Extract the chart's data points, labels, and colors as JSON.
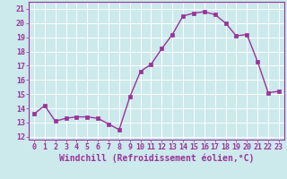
{
  "x": [
    0,
    1,
    2,
    3,
    4,
    5,
    6,
    7,
    8,
    9,
    10,
    11,
    12,
    13,
    14,
    15,
    16,
    17,
    18,
    19,
    20,
    21,
    22,
    23
  ],
  "y": [
    13.6,
    14.2,
    13.1,
    13.3,
    13.4,
    13.4,
    13.3,
    12.9,
    12.5,
    14.8,
    16.6,
    17.1,
    18.2,
    19.2,
    20.5,
    20.7,
    20.8,
    20.6,
    20.0,
    19.1,
    19.2,
    17.3,
    15.1,
    15.2
  ],
  "line_color": "#993399",
  "marker": "s",
  "markersize": 2.5,
  "linewidth": 1.0,
  "xlabel": "Windchill (Refroidissement éolien,°C)",
  "xlabel_fontsize": 7.0,
  "ylabel_ticks": [
    12,
    13,
    14,
    15,
    16,
    17,
    18,
    19,
    20,
    21
  ],
  "xlim": [
    -0.5,
    23.5
  ],
  "ylim": [
    11.8,
    21.5
  ],
  "bg_color": "#cce9ec",
  "grid_color": "#ffffff",
  "tick_fontsize": 6.0,
  "spine_color": "#993399"
}
